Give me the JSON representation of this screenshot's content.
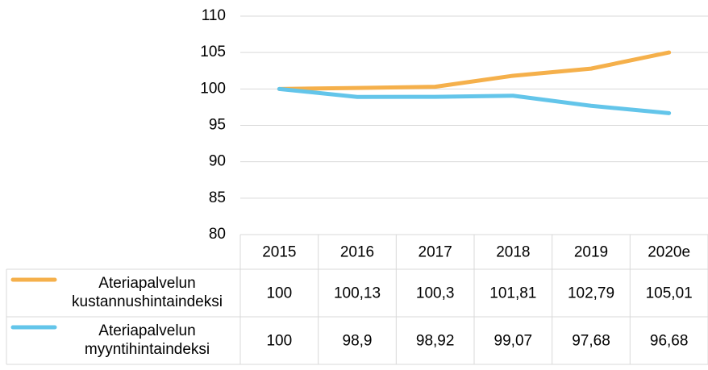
{
  "chart_data": {
    "type": "line",
    "categories": [
      "2015",
      "2016",
      "2017",
      "2018",
      "2019",
      "2020e"
    ],
    "series": [
      {
        "name": "Ateriapalvelun kustannushintaindeksi",
        "color": "#f5b04b",
        "values": [
          100,
          100.13,
          100.3,
          101.81,
          102.79,
          105.01
        ],
        "value_labels": [
          "100",
          "100,13",
          "100,3",
          "101,81",
          "102,79",
          "105,01"
        ]
      },
      {
        "name": "Ateriapalvelun myyntihintaindeksi",
        "color": "#63c5ea",
        "values": [
          100,
          98.9,
          98.92,
          99.07,
          97.68,
          96.68
        ],
        "value_labels": [
          "100",
          "98,9",
          "98,92",
          "99,07",
          "97,68",
          "96,68"
        ]
      }
    ],
    "ylim": [
      80,
      110
    ],
    "yticks": [
      80,
      85,
      90,
      95,
      100,
      105,
      110
    ],
    "grid": true
  }
}
